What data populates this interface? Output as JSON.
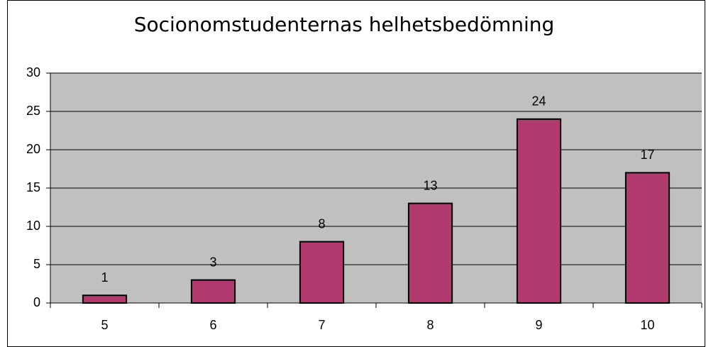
{
  "chart_data": {
    "type": "bar",
    "title": "Socionomstudenternas helhetsbedömning",
    "categories": [
      "5",
      "6",
      "7",
      "8",
      "9",
      "10"
    ],
    "values": [
      1,
      3,
      8,
      13,
      24,
      17
    ],
    "color": "#b03a6e",
    "ylim": [
      0,
      30
    ],
    "yticks": [
      0,
      5,
      10,
      15,
      20,
      25,
      30
    ],
    "grid": true
  }
}
